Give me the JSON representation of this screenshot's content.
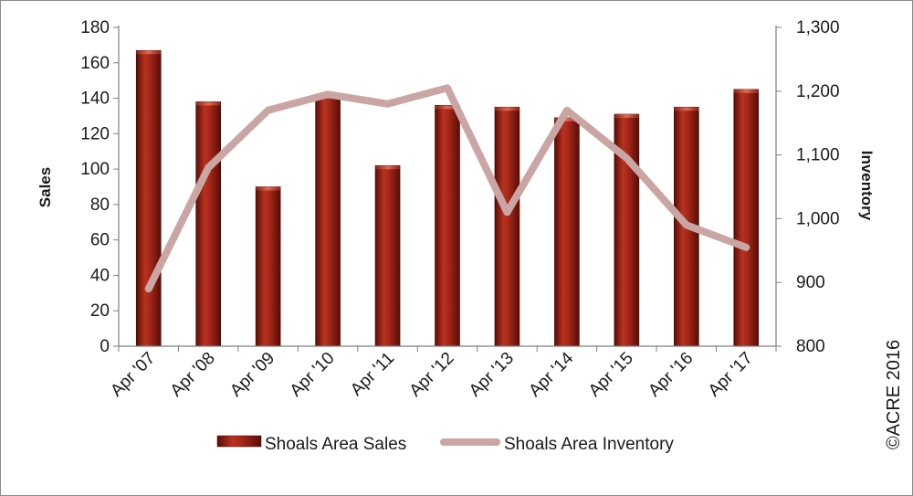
{
  "chart_data": {
    "type": "bar",
    "categories": [
      "Apr '07",
      "Apr '08",
      "Apr '09",
      "Apr '10",
      "Apr '11",
      "Apr '12",
      "Apr '13",
      "Apr '14",
      "Apr '15",
      "Apr '16",
      "Apr '17"
    ],
    "series": [
      {
        "name": "Shoals Area Sales",
        "type": "bar",
        "axis": "left",
        "color": "#8b1a10",
        "values": [
          167,
          138,
          90,
          142,
          102,
          136,
          135,
          129,
          131,
          135,
          145
        ]
      },
      {
        "name": "Shoals Area Inventory",
        "type": "line",
        "axis": "right",
        "color": "#c9a6a3",
        "values": [
          890,
          1080,
          1170,
          1195,
          1180,
          1205,
          1010,
          1170,
          1095,
          990,
          955
        ]
      }
    ],
    "ylabel": "Sales",
    "y2label": "Inventory",
    "ylim": [
      0,
      180
    ],
    "y2lim": [
      800,
      1300
    ],
    "yticks": [
      "0",
      "20",
      "40",
      "60",
      "80",
      "100",
      "120",
      "140",
      "160",
      "180"
    ],
    "y2ticks": [
      "800",
      "900",
      "1,000",
      "1,100",
      "1,200",
      "1,300"
    ],
    "grid": false,
    "legend": "bottom"
  },
  "copyright": "©ACRE 2016"
}
